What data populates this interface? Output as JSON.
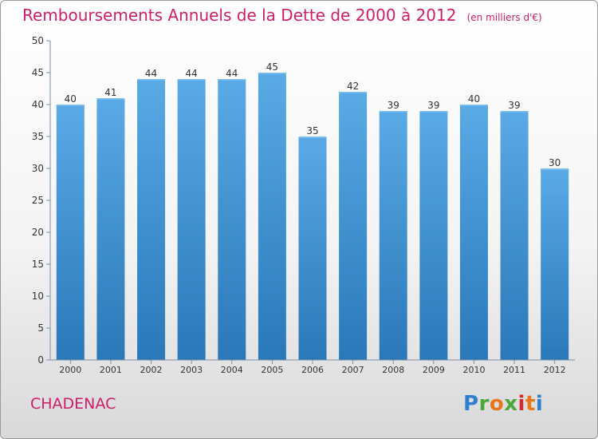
{
  "title": "Remboursements Annuels de la Dette de 2000 à 2012",
  "unit_note": "(en milliers d'€)",
  "commune": "CHADENAC",
  "logo_text": "Proxiti",
  "colors": {
    "title": "#cc1e6a",
    "bar_top": "#5aaae6",
    "bar_bottom": "#2a78b8",
    "axis": "#7a8fa8"
  },
  "chart_data": {
    "type": "bar",
    "categories": [
      "2000",
      "2001",
      "2002",
      "2003",
      "2004",
      "2005",
      "2006",
      "2007",
      "2008",
      "2009",
      "2010",
      "2011",
      "2012"
    ],
    "values": [
      40,
      41,
      44,
      44,
      44,
      45,
      35,
      42,
      39,
      39,
      40,
      39,
      30
    ],
    "ylim": [
      0,
      50
    ],
    "yticks": [
      0,
      5,
      10,
      15,
      20,
      25,
      30,
      35,
      40,
      45,
      50
    ],
    "grid": false,
    "data_labels": true
  }
}
